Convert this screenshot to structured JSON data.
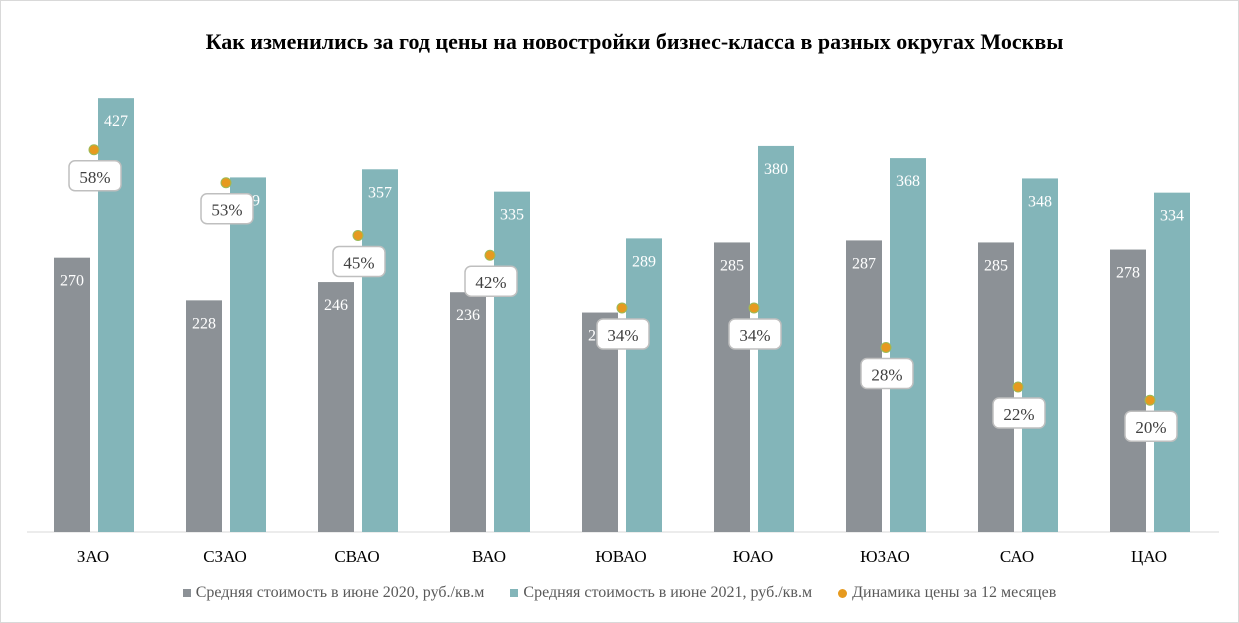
{
  "chart_data": {
    "type": "bar",
    "title": "Как изменились за год цены на новостройки  бизнес-класса  в разных округах Москвы",
    "categories": [
      "ЗАО",
      "СЗАО",
      "СВАО",
      "ВАО",
      "ЮВАО",
      "ЮАО",
      "ЮЗАО",
      "САО",
      "ЦАО"
    ],
    "series": [
      {
        "name": "Средняя стоимость в июне 2020, руб./кв.м",
        "color": "#8c9196",
        "values": [
          270,
          228,
          246,
          236,
          216,
          285,
          287,
          285,
          278
        ]
      },
      {
        "name": "Средняя стоимость в июне 2021, руб./кв.м",
        "color": "#83b5b9",
        "values": [
          427,
          349,
          357,
          335,
          289,
          380,
          368,
          348,
          334
        ]
      },
      {
        "name": "Динамика цены за 12 месяцев",
        "type": "scatter",
        "color": "#e69a1f",
        "values": [
          58,
          53,
          45,
          42,
          34,
          34,
          28,
          22,
          20
        ],
        "labels": [
          "58%",
          "53%",
          "45%",
          "42%",
          "34%",
          "34%",
          "28%",
          "22%",
          "20%"
        ]
      }
    ],
    "ylim": [
      0,
      430
    ],
    "y2lim": [
      0,
      65
    ],
    "grid": false,
    "legend": "bottom"
  }
}
